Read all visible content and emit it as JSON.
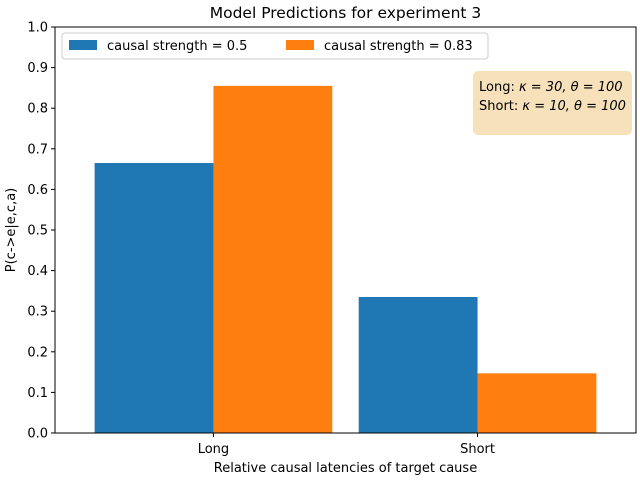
{
  "chart_data": {
    "type": "bar",
    "title": "Model Predictions for experiment 3",
    "xlabel": "Relative causal latencies of target cause",
    "ylabel": "P(c->e|e,c,a)",
    "categories": [
      "Long",
      "Short"
    ],
    "series": [
      {
        "name": "causal strength = 0.5",
        "values": [
          0.665,
          0.335
        ],
        "color": "#1f77b4"
      },
      {
        "name": "causal strength = 0.83",
        "values": [
          0.855,
          0.147
        ],
        "color": "#ff7f0e"
      }
    ],
    "ylim": [
      0,
      1.0
    ],
    "yticks": [
      "0.0",
      "0.1",
      "0.2",
      "0.3",
      "0.4",
      "0.5",
      "0.6",
      "0.7",
      "0.8",
      "0.9",
      "1.0"
    ],
    "grid": false,
    "legend_position": "top-left",
    "annotation": {
      "line1_prefix": "Long: ",
      "line1_math": "κ = 30, θ = 100",
      "line2_prefix": "Short: ",
      "line2_math": "κ = 10, θ = 100",
      "background": "#f5deb3"
    }
  }
}
